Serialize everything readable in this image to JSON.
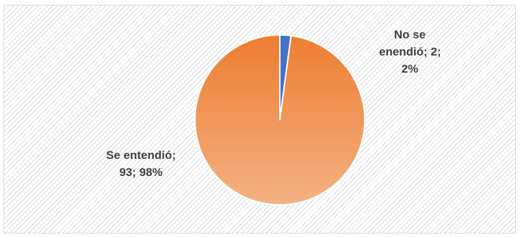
{
  "chart_data": {
    "type": "pie",
    "title": "",
    "slices": [
      {
        "name": "No se entendió",
        "value": 2,
        "percent": "2%",
        "color": "#4472c4",
        "label_lines": [
          "No se",
          "enendió; 2;",
          "2%"
        ]
      },
      {
        "name": "Se entendió",
        "value": 93,
        "percent": "98%",
        "color": "#ed7d31",
        "label_lines": [
          "Se entendió;",
          "93; 98%"
        ]
      }
    ],
    "colors": {
      "orange_top": "#ed7d31",
      "orange_bottom": "#f4b183",
      "blue": "#4472c4"
    },
    "legend": "none"
  }
}
